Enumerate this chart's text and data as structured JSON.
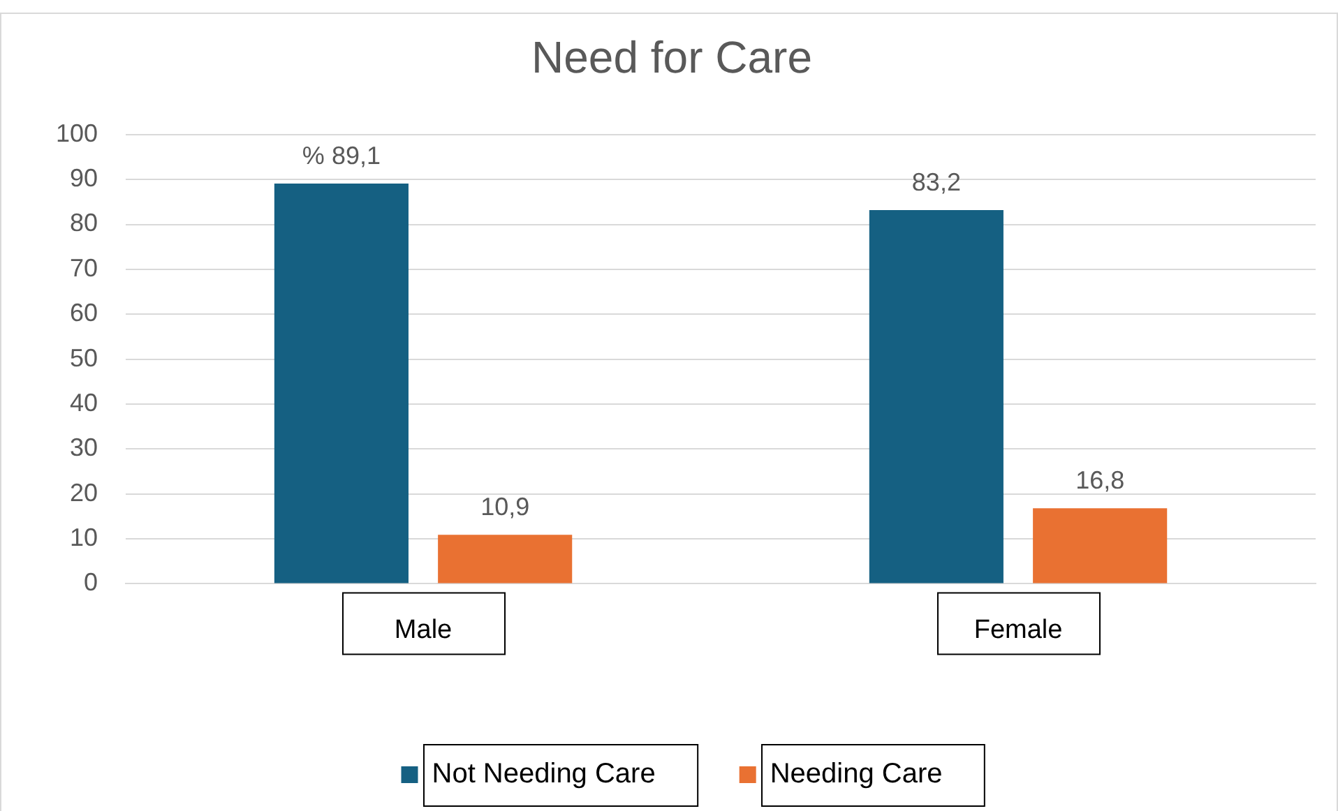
{
  "chart_data": {
    "type": "bar",
    "title": "Need for Care",
    "categories": [
      "Male",
      "Female"
    ],
    "series": [
      {
        "name": "Not Needing Care",
        "color": "#156082",
        "values": [
          89.1,
          83.2
        ],
        "value_labels": [
          "% 89,1",
          "83,2"
        ]
      },
      {
        "name": "Needing Care",
        "color": "#e97132",
        "values": [
          10.9,
          16.8
        ],
        "value_labels": [
          "10,9",
          "16,8"
        ]
      }
    ],
    "ylim": [
      0,
      100
    ],
    "yticks": [
      0,
      10,
      20,
      30,
      40,
      50,
      60,
      70,
      80,
      90,
      100
    ],
    "grid": "y",
    "legend": "bottom"
  }
}
